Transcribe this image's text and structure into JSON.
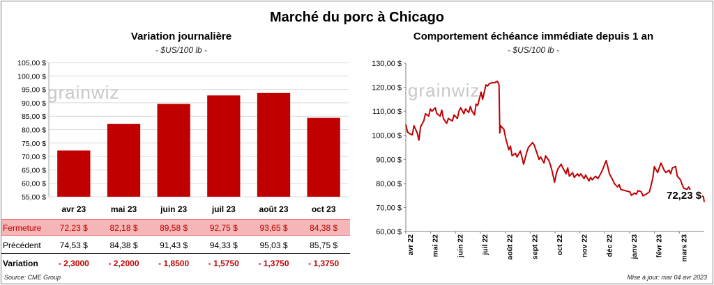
{
  "title": "Marché du porc à Chicago",
  "left_panel": {
    "title": "Variation  journalière",
    "subtitle": "- $US/100 lb -",
    "watermark": "grainwiz"
  },
  "right_panel": {
    "title": "Comportement  échéance immédiate depuis 1 an",
    "subtitle": "- $US/100 lb -",
    "watermark": "grainwiz",
    "last_price_label": "72,23 $"
  },
  "table": {
    "labels": {
      "close": "Fermeture",
      "previous": "Précédent",
      "variation": "Variation"
    },
    "close": [
      "72,23  $",
      "82,18  $",
      "89,58  $",
      "92,75  $",
      "93,65  $",
      "84,38  $"
    ],
    "previous": [
      "74,53  $",
      "84,38  $",
      "91,43  $",
      "94,33  $",
      "95,03  $",
      "85,75  $"
    ],
    "variation": [
      "- 2,3000",
      "- 2,2000",
      "- 1,8500",
      "- 1,5750",
      "- 1,3750",
      "- 1,3750"
    ]
  },
  "footer": {
    "source": "Source: CME Group",
    "updated": "Mise à jour: mar 04 avr 2023"
  },
  "chart_data": [
    {
      "type": "bar",
      "title": "Variation  journalière",
      "subtitle": "- $US/100 lb -",
      "categories": [
        "avr 23",
        "mai 23",
        "juin 23",
        "juil 23",
        "août 23",
        "oct 23"
      ],
      "values": [
        72.23,
        82.18,
        89.58,
        92.75,
        93.65,
        84.38
      ],
      "ylim": [
        55,
        105
      ],
      "yticks": [
        "55,00 $",
        "60,00 $",
        "65,00 $",
        "70,00 $",
        "75,00 $",
        "80,00 $",
        "85,00 $",
        "90,00 $",
        "95,00 $",
        "100,00 $",
        "105,00 $"
      ],
      "color": "#c00000",
      "grid": true
    },
    {
      "type": "line",
      "title": "Comportement  échéance immédiate depuis 1 an",
      "subtitle": "- $US/100 lb -",
      "ylim": [
        60,
        130
      ],
      "yticks": [
        "60,00 $",
        "70,00 $",
        "80,00 $",
        "90,00 $",
        "100,00 $",
        "110,00 $",
        "120,00 $",
        "130,00 $"
      ],
      "xticks": [
        "avr 22",
        "mai 22",
        "juin 22",
        "juil 22",
        "août 22",
        "sept 22",
        "oct 22",
        "nov 22",
        "déc 22",
        "janv 23",
        "févr 23",
        "mars 23"
      ],
      "x_range": [
        "2022-04-04",
        "2023-04-04"
      ],
      "color": "#c00000",
      "grid": false,
      "points": [
        [
          "2022-04-04",
          104.5
        ],
        [
          "2022-04-06",
          101.5
        ],
        [
          "2022-04-08",
          100.8
        ],
        [
          "2022-04-12",
          100.2
        ],
        [
          "2022-04-14",
          104.0
        ],
        [
          "2022-04-18",
          101.0
        ],
        [
          "2022-04-20",
          98.0
        ],
        [
          "2022-04-22",
          103.5
        ],
        [
          "2022-04-26",
          106.0
        ],
        [
          "2022-04-28",
          109.0
        ],
        [
          "2022-05-02",
          108.0
        ],
        [
          "2022-05-04",
          111.0
        ],
        [
          "2022-05-06",
          110.0
        ],
        [
          "2022-05-10",
          111.5
        ],
        [
          "2022-05-12",
          109.0
        ],
        [
          "2022-05-16",
          108.0
        ],
        [
          "2022-05-18",
          110.5
        ],
        [
          "2022-05-20",
          107.0
        ],
        [
          "2022-05-24",
          105.0
        ],
        [
          "2022-05-26",
          107.0
        ],
        [
          "2022-05-31",
          106.0
        ],
        [
          "2022-06-02",
          108.5
        ],
        [
          "2022-06-06",
          107.0
        ],
        [
          "2022-06-08",
          110.0
        ],
        [
          "2022-06-10",
          111.5
        ],
        [
          "2022-06-14",
          109.0
        ],
        [
          "2022-06-16",
          111.0
        ],
        [
          "2022-06-20",
          109.5
        ],
        [
          "2022-06-22",
          112.0
        ],
        [
          "2022-06-24",
          110.0
        ],
        [
          "2022-06-27",
          108.5
        ],
        [
          "2022-06-29",
          113.0
        ],
        [
          "2022-07-01",
          112.5
        ],
        [
          "2022-07-05",
          118.0
        ],
        [
          "2022-07-07",
          115.0
        ],
        [
          "2022-07-11",
          121.0
        ],
        [
          "2022-07-13",
          120.5
        ],
        [
          "2022-07-15",
          121.5
        ],
        [
          "2022-07-19",
          122.0
        ],
        [
          "2022-07-21",
          121.8
        ],
        [
          "2022-07-25",
          122.5
        ],
        [
          "2022-07-27",
          121.0
        ],
        [
          "2022-07-28",
          101.0
        ],
        [
          "2022-07-29",
          104.0
        ],
        [
          "2022-08-02",
          102.5
        ],
        [
          "2022-08-04",
          99.0
        ],
        [
          "2022-08-08",
          94.0
        ],
        [
          "2022-08-10",
          95.5
        ],
        [
          "2022-08-12",
          91.5
        ],
        [
          "2022-08-16",
          92.5
        ],
        [
          "2022-08-18",
          91.0
        ],
        [
          "2022-08-22",
          93.5
        ],
        [
          "2022-08-24",
          91.0
        ],
        [
          "2022-08-26",
          88.0
        ],
        [
          "2022-08-30",
          93.0
        ],
        [
          "2022-09-01",
          95.0
        ],
        [
          "2022-09-06",
          97.0
        ],
        [
          "2022-09-08",
          96.0
        ],
        [
          "2022-09-12",
          92.0
        ],
        [
          "2022-09-14",
          90.0
        ],
        [
          "2022-09-16",
          91.0
        ],
        [
          "2022-09-20",
          88.5
        ],
        [
          "2022-09-22",
          91.5
        ],
        [
          "2022-09-26",
          89.5
        ],
        [
          "2022-09-28",
          87.5
        ],
        [
          "2022-09-30",
          85.0
        ],
        [
          "2022-10-03",
          80.5
        ],
        [
          "2022-10-05",
          84.0
        ],
        [
          "2022-10-07",
          86.0
        ],
        [
          "2022-10-11",
          88.0
        ],
        [
          "2022-10-13",
          86.5
        ],
        [
          "2022-10-17",
          84.0
        ],
        [
          "2022-10-19",
          86.5
        ],
        [
          "2022-10-21",
          83.0
        ],
        [
          "2022-10-25",
          84.5
        ],
        [
          "2022-10-27",
          82.5
        ],
        [
          "2022-10-31",
          84.0
        ],
        [
          "2022-11-02",
          83.0
        ],
        [
          "2022-11-04",
          84.0
        ],
        [
          "2022-11-08",
          82.0
        ],
        [
          "2022-11-10",
          83.5
        ],
        [
          "2022-11-14",
          81.0
        ],
        [
          "2022-11-16",
          82.5
        ],
        [
          "2022-11-18",
          81.5
        ],
        [
          "2022-11-22",
          83.0
        ],
        [
          "2022-11-25",
          82.0
        ],
        [
          "2022-11-29",
          84.5
        ],
        [
          "2022-12-01",
          86.0
        ],
        [
          "2022-12-05",
          89.5
        ],
        [
          "2022-12-07",
          87.0
        ],
        [
          "2022-12-09",
          84.0
        ],
        [
          "2022-12-13",
          81.5
        ],
        [
          "2022-12-15",
          80.0
        ],
        [
          "2022-12-19",
          78.5
        ],
        [
          "2022-12-21",
          79.5
        ],
        [
          "2022-12-23",
          77.5
        ],
        [
          "2022-12-28",
          77.0
        ],
        [
          "2023-01-03",
          76.5
        ],
        [
          "2023-01-05",
          75.0
        ],
        [
          "2023-01-09",
          76.0
        ],
        [
          "2023-01-11",
          75.5
        ],
        [
          "2023-01-13",
          77.0
        ],
        [
          "2023-01-17",
          76.5
        ],
        [
          "2023-01-19",
          74.8
        ],
        [
          "2023-01-23",
          75.5
        ],
        [
          "2023-01-25",
          76.0
        ],
        [
          "2023-01-27",
          76.5
        ],
        [
          "2023-01-31",
          82.0
        ],
        [
          "2023-02-02",
          87.0
        ],
        [
          "2023-02-06",
          84.5
        ],
        [
          "2023-02-08",
          86.5
        ],
        [
          "2023-02-10",
          88.5
        ],
        [
          "2023-02-14",
          85.5
        ],
        [
          "2023-02-16",
          84.5
        ],
        [
          "2023-02-20",
          85.5
        ],
        [
          "2023-02-22",
          84.0
        ],
        [
          "2023-02-24",
          86.5
        ],
        [
          "2023-02-28",
          87.0
        ],
        [
          "2023-03-02",
          83.0
        ],
        [
          "2023-03-06",
          81.5
        ],
        [
          "2023-03-08",
          79.5
        ],
        [
          "2023-03-10",
          78.0
        ],
        [
          "2023-03-14",
          77.5
        ],
        [
          "2023-03-16",
          78.5
        ],
        [
          "2023-03-20",
          76.0
        ],
        [
          "2023-03-22",
          75.5
        ],
        [
          "2023-03-24",
          76.5
        ],
        [
          "2023-03-28",
          74.5
        ],
        [
          "2023-03-30",
          75.0
        ],
        [
          "2023-04-03",
          74.53
        ],
        [
          "2023-04-04",
          72.23
        ]
      ]
    }
  ]
}
